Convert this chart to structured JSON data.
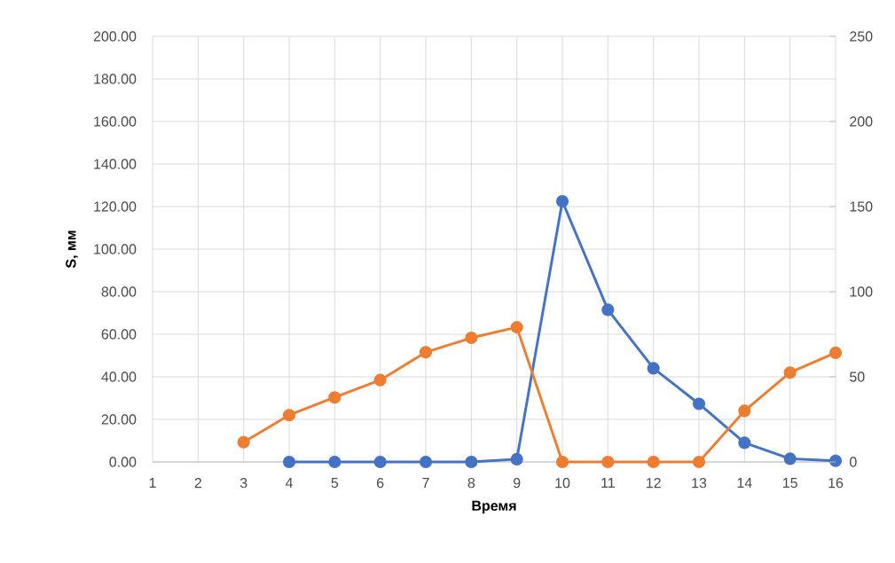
{
  "chart_data": {
    "type": "line",
    "xlabel": "Время",
    "ylabel": "S, мм",
    "categories": [
      "1",
      "2",
      "3",
      "4",
      "5",
      "6",
      "7",
      "8",
      "9",
      "10",
      "11",
      "12",
      "13",
      "14",
      "15",
      "16"
    ],
    "series": [
      {
        "color": "#4472c4",
        "values": [
          null,
          null,
          null,
          0,
          0,
          0,
          0,
          0,
          1.3,
          122.5,
          71.5,
          44,
          27.3,
          9,
          1.5,
          0.5
        ]
      },
      {
        "color": "#ed7d31",
        "axis": "y2",
        "values": [
          null,
          null,
          11.6,
          27.5,
          37.9,
          48.1,
          64.4,
          72.9,
          79.1,
          0,
          0,
          0,
          0,
          30,
          52.5,
          64.1
        ]
      }
    ],
    "ylim": [
      0,
      200
    ],
    "yticks": [
      {
        "value": 0,
        "label": "0.00"
      },
      {
        "value": 20,
        "label": "20.00"
      },
      {
        "value": 40,
        "label": "40.00"
      },
      {
        "value": 60,
        "label": "60.00"
      },
      {
        "value": 80,
        "label": "80.00"
      },
      {
        "value": 100,
        "label": "100.00"
      },
      {
        "value": 120,
        "label": "120.00"
      },
      {
        "value": 140,
        "label": "140.00"
      },
      {
        "value": 160,
        "label": "160.00"
      },
      {
        "value": 180,
        "label": "180.00"
      },
      {
        "value": 200,
        "label": "200.00"
      }
    ],
    "y2lim": [
      0,
      250
    ],
    "y2ticks": [
      0,
      50,
      100,
      150,
      200,
      250
    ],
    "grid": true,
    "marker": "circle",
    "line_style": "solid"
  }
}
